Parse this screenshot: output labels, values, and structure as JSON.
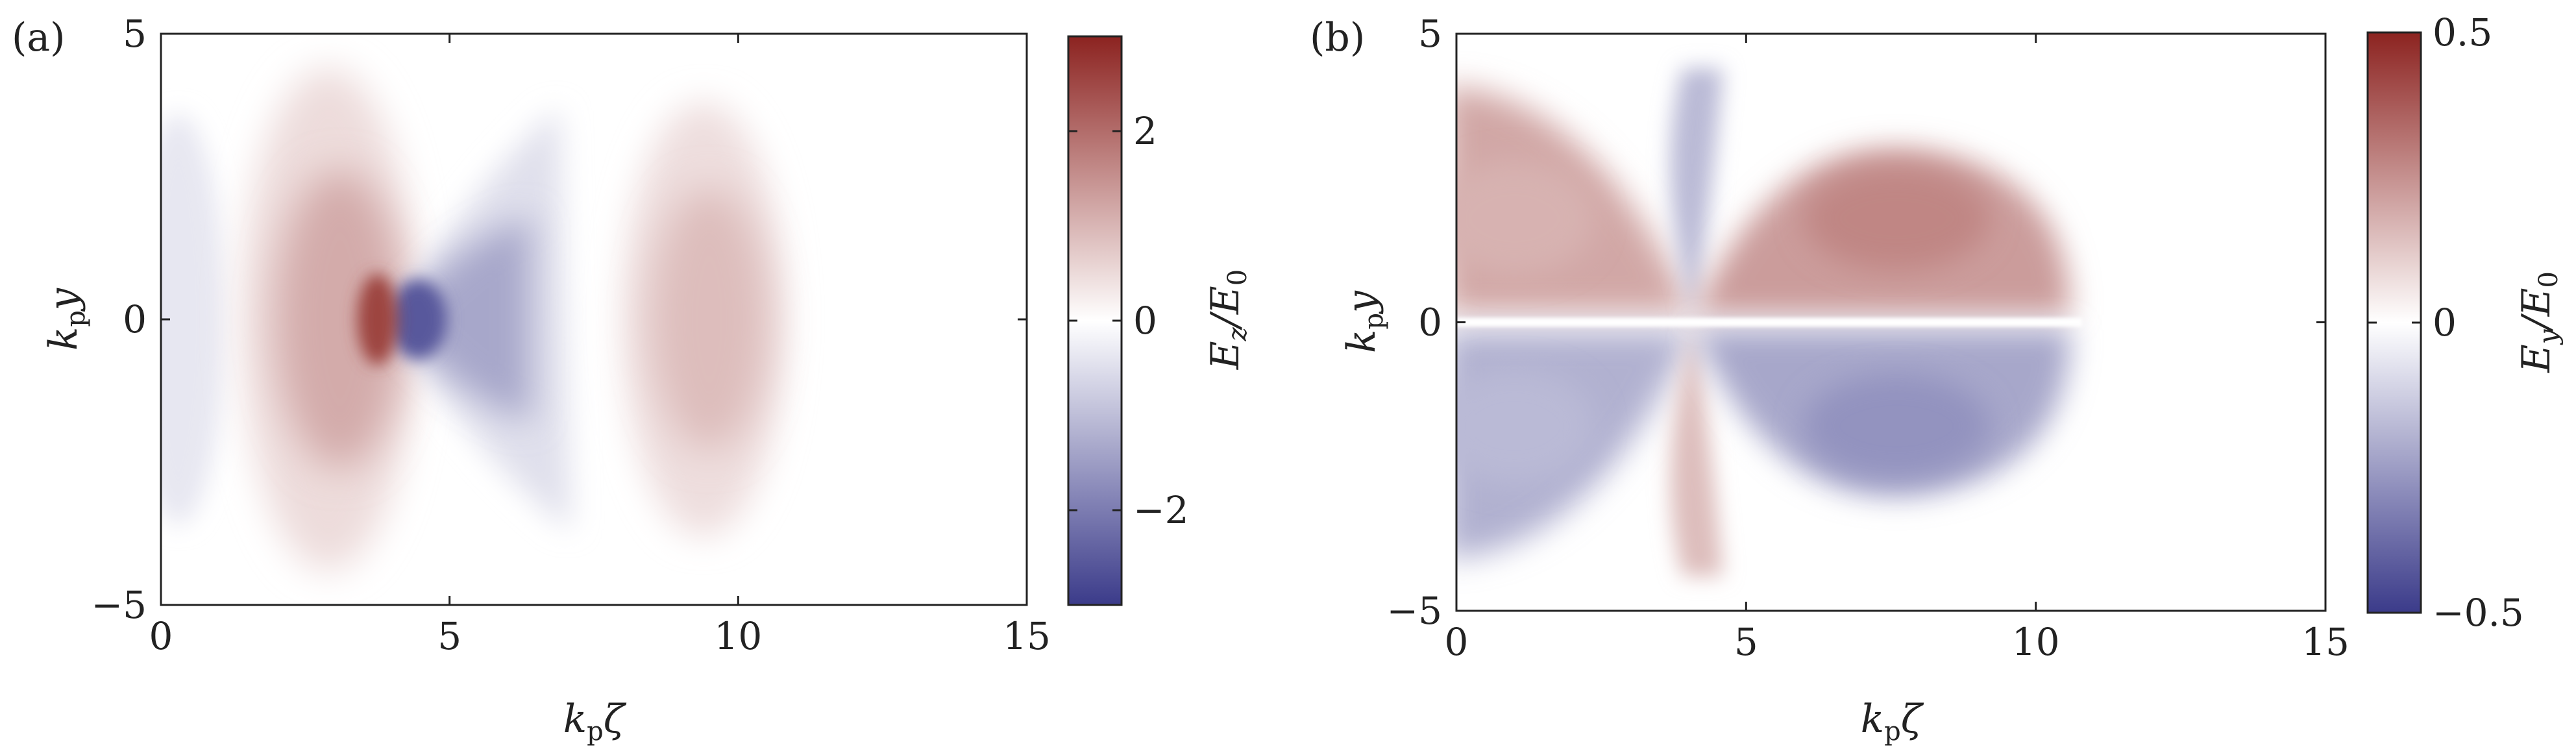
{
  "figure": {
    "panels": [
      {
        "label": "(a)",
        "xlabel_main": "k",
        "xlabel_sub": "p",
        "xlabel_sym": "ζ",
        "ylabel_main": "k",
        "ylabel_sub": "p",
        "ylabel_sym": "y",
        "cbar_label_num": "E",
        "cbar_label_num_sub": "z",
        "cbar_label_den": "/E",
        "cbar_label_den_sub": "0"
      },
      {
        "label": "(b)",
        "xlabel_main": "k",
        "xlabel_sub": "p",
        "xlabel_sym": "ζ",
        "ylabel_main": "k",
        "ylabel_sub": "p",
        "ylabel_sym": "y",
        "cbar_label_num": "E",
        "cbar_label_num_sub": "y",
        "cbar_label_den": "/E",
        "cbar_label_den_sub": "0"
      }
    ]
  },
  "colors": {
    "negative": "#3b3b8a",
    "zero": "#ffffff",
    "positive": "#8c2320",
    "axis": "#222222"
  },
  "chart_data": [
    {
      "type": "heatmap",
      "quantity": "Ez/E0",
      "xlim": [
        0,
        15
      ],
      "ylim": [
        -5,
        5
      ],
      "xticks": [
        0,
        5,
        10,
        15
      ],
      "yticks": [
        -5,
        0,
        5
      ],
      "xtick_labels": [
        "0",
        "5",
        "10",
        "15"
      ],
      "ytick_labels": [
        "−5",
        "0",
        "5"
      ],
      "colorbar": {
        "range": [
          -3,
          3
        ],
        "ticks": [
          -2,
          0,
          2
        ],
        "tick_labels": [
          "−2",
          "0",
          "2"
        ]
      }
    },
    {
      "type": "heatmap",
      "quantity": "Ey/E0",
      "xlim": [
        0,
        15
      ],
      "ylim": [
        -5,
        5
      ],
      "xticks": [
        0,
        5,
        10,
        15
      ],
      "yticks": [
        -5,
        0,
        5
      ],
      "xtick_labels": [
        "0",
        "5",
        "10",
        "15"
      ],
      "ytick_labels": [
        "−5",
        "0",
        "5"
      ],
      "colorbar": {
        "range": [
          -0.5,
          0.5
        ],
        "ticks": [
          -0.5,
          0,
          0.5
        ],
        "tick_labels": [
          "−0.5",
          "0",
          "0.5"
        ]
      }
    }
  ]
}
